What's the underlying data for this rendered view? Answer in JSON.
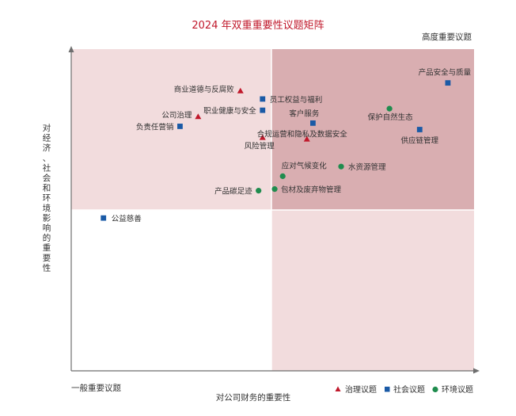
{
  "chart_data": {
    "type": "scatter",
    "title": "2024 年双重重要性议题矩阵",
    "xlabel": "对公司财务的重要性",
    "ylabel": "对经济、社会和环境影响的重要性",
    "high_label": "高度重要议题",
    "low_label": "一般重要议题",
    "xlim": [
      0,
      100
    ],
    "ylim": [
      0,
      100
    ],
    "x_threshold": 50,
    "y_threshold": 50,
    "grid": false,
    "legend_position": "bottom-right",
    "colors": {
      "governance": "#c0182b",
      "social": "#1a5aa6",
      "environment": "#1f8c4e",
      "quadrant_high": "#d9aeb1",
      "quadrant_mid": "#f2dcdd",
      "quadrant_low": "#ffffff",
      "title": "#c0182b"
    },
    "series": [
      {
        "name": "治理议题",
        "marker": "triangle",
        "points": [
          {
            "label": "商业道德与反腐败",
            "x": 42,
            "y": 87
          },
          {
            "label": "公司治理",
            "x": 31.5,
            "y": 79
          },
          {
            "label": "风险管理",
            "x": 47.5,
            "y": 72.5
          },
          {
            "label": "合规运营和隐私及数据安全",
            "x": 58.5,
            "y": 72
          }
        ]
      },
      {
        "name": "社会议题",
        "marker": "square",
        "points": [
          {
            "label": "产品安全与质量",
            "x": 93.5,
            "y": 89.5
          },
          {
            "label": "员工权益与福利",
            "x": 47.5,
            "y": 84.5
          },
          {
            "label": "职业健康与安全",
            "x": 47.5,
            "y": 81
          },
          {
            "label": "负责任营销",
            "x": 27,
            "y": 76
          },
          {
            "label": "客户服务",
            "x": 60,
            "y": 77
          },
          {
            "label": "供应链管理",
            "x": 86.5,
            "y": 75
          },
          {
            "label": "公益慈善",
            "x": 8,
            "y": 47.5
          }
        ]
      },
      {
        "name": "环境议题",
        "marker": "circle",
        "points": [
          {
            "label": "保护自然生态",
            "x": 79,
            "y": 81.5
          },
          {
            "label": "水资源管理",
            "x": 67,
            "y": 63.5
          },
          {
            "label": "应对气候变化",
            "x": 52.5,
            "y": 60.5
          },
          {
            "label": "包材及废弃物管理",
            "x": 50.5,
            "y": 56.5
          },
          {
            "label": "产品碳足迹",
            "x": 46.5,
            "y": 56
          }
        ]
      }
    ]
  }
}
